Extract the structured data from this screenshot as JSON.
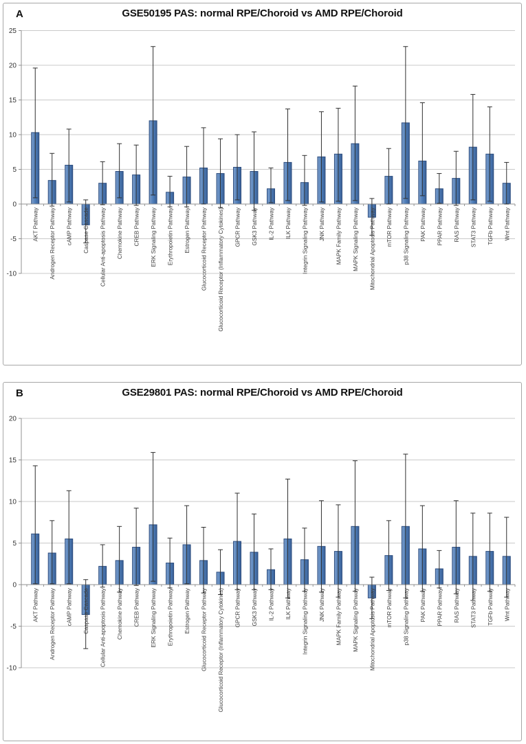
{
  "page": {
    "background": "#ffffff"
  },
  "chart_data": [
    {
      "type": "bar",
      "panel_label": "A",
      "title": "GSE50195 PAS: normal RPE/Choroid vs AMD RPE/Choroid",
      "xlabel": "",
      "ylabel": "",
      "ylim": [
        -10,
        25
      ],
      "yticks": [
        25,
        20,
        15,
        10,
        5,
        0,
        -5,
        -10
      ],
      "grid": true,
      "legend": "none",
      "bar_color": "#4E7DB8",
      "bar_edge_color": "#2C4C7E",
      "error_bar_color": "#2F2F2F",
      "gridline_color": "#c9c9c9",
      "axis_color": "#919191",
      "categories": [
        "AKT Pathway",
        "Androgen Receptor Pathway",
        "cAMP Pathway",
        "Caspase Cascade",
        "Cellular Anti-apoptosis Pathway",
        "Chemokine Pathway",
        "CREB Pathway",
        "ERK Signaling Pathway",
        "Erythropoietin Pathway",
        "Estrogen Pathway",
        "Glucocorticoid Receptor Pathway",
        "Glucocorticoid Receptor (Inflammatory Cytokines)",
        "GPCR Pathway",
        "GSK3 Pathway",
        "IL-2 Pathway",
        "ILK Pathway",
        "Integrin Signaling Pathway",
        "JNK Pathway",
        "MAPK Family Pathway",
        "MAPK Signaling Pathway",
        "Mitochondrial Apoptosis Pathway",
        "mTOR Pathway",
        "p38 Signaling Pathway",
        "PAK Pathway",
        "PPAR Pathway",
        "RAS Pathway",
        "STAT3 Pathway",
        "TGFb Pathway",
        "Wnt Pathway"
      ],
      "values": [
        10.3,
        3.4,
        5.6,
        -3.0,
        3.0,
        4.7,
        4.2,
        12.0,
        1.7,
        3.9,
        5.2,
        4.4,
        5.3,
        4.7,
        2.2,
        6.0,
        3.1,
        6.8,
        7.2,
        8.7,
        -1.9,
        4.0,
        11.7,
        6.2,
        2.2,
        3.7,
        8.2,
        7.2,
        3.0
      ],
      "error_low": [
        0.9,
        -0.3,
        0.3,
        -5.6,
        -0.1,
        0.9,
        -0.2,
        1.3,
        -0.4,
        -0.4,
        0.0,
        -0.5,
        0.6,
        -0.9,
        0.2,
        0.5,
        -0.2,
        0.3,
        0.4,
        0.5,
        -4.5,
        0.0,
        0.8,
        1.2,
        0.1,
        -0.2,
        0.6,
        0.4,
        0.0
      ],
      "error_high": [
        19.6,
        7.3,
        10.8,
        0.6,
        6.1,
        8.7,
        8.5,
        22.7,
        4.0,
        8.3,
        11.0,
        9.4,
        10.0,
        10.4,
        5.2,
        13.7,
        7.0,
        13.3,
        13.8,
        17.0,
        0.8,
        8.0,
        22.7,
        14.6,
        4.4,
        7.6,
        15.8,
        14.0,
        6.0
      ]
    },
    {
      "type": "bar",
      "panel_label": "B",
      "title": "GSE29801 PAS: normal RPE/Choroid vs AMD RPE/Choroid",
      "xlabel": "",
      "ylabel": "",
      "ylim": [
        -10,
        20
      ],
      "yticks": [
        20,
        15,
        10,
        5,
        0,
        -5,
        -10
      ],
      "grid": true,
      "legend": "none",
      "bar_color": "#4E7DB8",
      "bar_edge_color": "#2C4C7E",
      "error_bar_color": "#2F2F2F",
      "gridline_color": "#c9c9c9",
      "axis_color": "#919191",
      "categories": [
        "AKT Pathway",
        "Androgen Receptor Pathway",
        "cAMP Pathway",
        "Caspase Cascade",
        "Cellular Anti-apoptosis Pathway",
        "Chemokine Pathway",
        "CREB Pathway",
        "ERK Signaling Pathway",
        "Erythropoietin Pathway",
        "Estrogen Pathway",
        "Glucocorticoid Receptor Pathway",
        "Glucocorticoid Receptor (Inflammatory Cytokines)",
        "GPCR Pathway",
        "GSK3 Pathway",
        "IL-2 Pathway",
        "ILK Pathway",
        "Integrin Signaling Pathway",
        "JNK Pathway",
        "MAPK Family Pathway",
        "MAPK Signaling Pathway",
        "Mitochondrial Apoptosis Pathway",
        "mTOR Pathway",
        "p38 Signaling Pathway",
        "PAK Pathway",
        "PPAR Pathway",
        "RAS Pathway",
        "STAT3 Pathway",
        "TGFb Pathway",
        "Wnt Pathway"
      ],
      "values": [
        6.1,
        3.8,
        5.5,
        -3.6,
        2.2,
        2.9,
        4.5,
        7.2,
        2.6,
        4.8,
        2.9,
        1.5,
        5.2,
        3.9,
        1.8,
        5.5,
        3.0,
        4.6,
        4.0,
        7.0,
        -1.6,
        3.5,
        7.0,
        4.3,
        1.9,
        4.5,
        3.4,
        4.0,
        3.4
      ],
      "error_low": [
        0.1,
        0.1,
        0.1,
        -7.7,
        -0.3,
        -0.9,
        -0.1,
        0.4,
        -0.4,
        0.1,
        -1.0,
        -1.2,
        -0.6,
        -0.6,
        -0.6,
        -1.6,
        -0.8,
        -0.9,
        -1.5,
        -0.8,
        -4.1,
        -0.7,
        -1.6,
        -0.8,
        -0.4,
        -1.1,
        -1.9,
        -0.8,
        -1.5
      ],
      "error_high": [
        14.3,
        7.7,
        11.3,
        0.6,
        4.8,
        7.0,
        9.2,
        15.9,
        5.6,
        9.5,
        6.9,
        4.2,
        11.0,
        8.5,
        4.3,
        12.7,
        6.8,
        10.1,
        9.6,
        14.9,
        0.9,
        7.7,
        15.7,
        9.5,
        4.1,
        10.1,
        8.6,
        8.6,
        8.1
      ]
    }
  ]
}
